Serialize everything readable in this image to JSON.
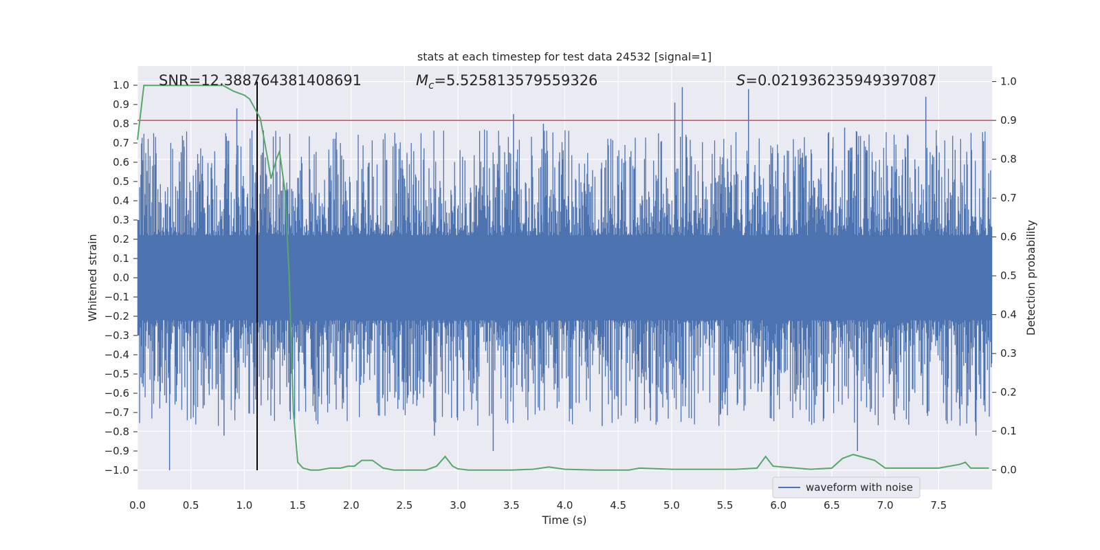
{
  "chart_data": {
    "type": "line",
    "title": "stats at each timestep for test data 24532 [signal=1]",
    "xlabel": "Time (s)",
    "ylabel": "Whitened strain",
    "y2label": "Detection probability",
    "xlim": [
      0,
      8.0
    ],
    "ylim": [
      -1.1,
      1.1
    ],
    "y2lim": [
      -0.05,
      1.04
    ],
    "grid": true,
    "x_ticks": [
      "0.0",
      "0.5",
      "1.0",
      "1.5",
      "2.0",
      "2.5",
      "3.0",
      "3.5",
      "4.0",
      "4.5",
      "5.0",
      "5.5",
      "6.0",
      "6.5",
      "7.0",
      "7.5"
    ],
    "y_ticks": [
      "1.0",
      "0.9",
      "0.8",
      "0.7",
      "0.6",
      "0.5",
      "0.4",
      "0.3",
      "0.2",
      "0.1",
      "0.0",
      "-0.1",
      "-0.2",
      "-0.3",
      "-0.4",
      "-0.5",
      "-0.6",
      "-0.7",
      "-0.8",
      "-0.9",
      "-1.0"
    ],
    "y2_ticks": [
      "1.0",
      "0.9",
      "0.8",
      "0.7",
      "0.6",
      "0.5",
      "0.4",
      "0.3",
      "0.2",
      "0.1",
      "0.0"
    ],
    "annotations": {
      "snr": "SNR=12.388764381408691",
      "mc_symbol": "M",
      "mc_sub": "c",
      "mc_value": "=5.525813579559326",
      "s_symbol": "S",
      "s_value": "=0.021936235949397087"
    },
    "legend": {
      "label": "waveform with noise",
      "placement": "lower-right"
    },
    "threshold": {
      "value": 0.9,
      "axis": "right",
      "color": "#c44e52"
    },
    "vline": {
      "x": 1.12,
      "color": "#000000"
    },
    "series": [
      {
        "name": "waveform with noise",
        "color": "#4c72b0",
        "axis": "left",
        "peaks": [
          [
            0.3,
            -1.0
          ],
          [
            0.27,
            -0.65
          ],
          [
            0.81,
            -0.82
          ],
          [
            0.93,
            0.88
          ],
          [
            2.78,
            -0.82
          ],
          [
            3.33,
            -0.9
          ],
          [
            3.52,
            0.85
          ],
          [
            3.8,
            0.8
          ],
          [
            4.35,
            -0.77
          ],
          [
            5.03,
            0.91
          ],
          [
            5.1,
            0.99
          ],
          [
            5.72,
            0.98
          ],
          [
            6.62,
            0.78
          ],
          [
            6.74,
            -0.9
          ],
          [
            7.38,
            0.94
          ],
          [
            7.85,
            -0.82
          ],
          [
            7.92,
            0.71
          ]
        ]
      },
      {
        "name": "Detection probability",
        "color": "#55a868",
        "axis": "right",
        "x": [
          0.0,
          0.06,
          0.2,
          0.4,
          0.6,
          0.8,
          0.9,
          1.0,
          1.05,
          1.1,
          1.15,
          1.2,
          1.25,
          1.3,
          1.33,
          1.38,
          1.42,
          1.46,
          1.5,
          1.55,
          1.62,
          1.7,
          1.8,
          1.9,
          1.97,
          2.03,
          2.1,
          2.2,
          2.25,
          2.3,
          2.4,
          2.5,
          2.6,
          2.7,
          2.8,
          2.88,
          2.95,
          3.0,
          3.1,
          3.2,
          3.5,
          3.7,
          3.85,
          4.0,
          4.3,
          4.6,
          4.7,
          5.0,
          5.3,
          5.6,
          5.8,
          5.88,
          5.95,
          6.3,
          6.5,
          6.6,
          6.7,
          6.9,
          7.0,
          7.5,
          7.7,
          7.75,
          7.8,
          7.9,
          7.97
        ],
        "values": [
          0.85,
          0.99,
          0.99,
          0.99,
          0.99,
          0.99,
          0.975,
          0.965,
          0.955,
          0.93,
          0.905,
          0.83,
          0.75,
          0.8,
          0.82,
          0.72,
          0.5,
          0.15,
          0.02,
          0.005,
          0.0,
          0.0,
          0.005,
          0.005,
          0.01,
          0.01,
          0.025,
          0.025,
          0.015,
          0.005,
          0.0,
          0.0,
          0.0,
          0.0,
          0.01,
          0.035,
          0.01,
          0.003,
          0.0,
          0.0,
          0.0,
          0.002,
          0.008,
          0.002,
          0.0,
          0.0,
          0.005,
          0.002,
          0.002,
          0.002,
          0.005,
          0.035,
          0.01,
          0.002,
          0.005,
          0.03,
          0.04,
          0.025,
          0.005,
          0.005,
          0.015,
          0.02,
          0.005,
          0.005,
          0.005
        ]
      }
    ]
  }
}
